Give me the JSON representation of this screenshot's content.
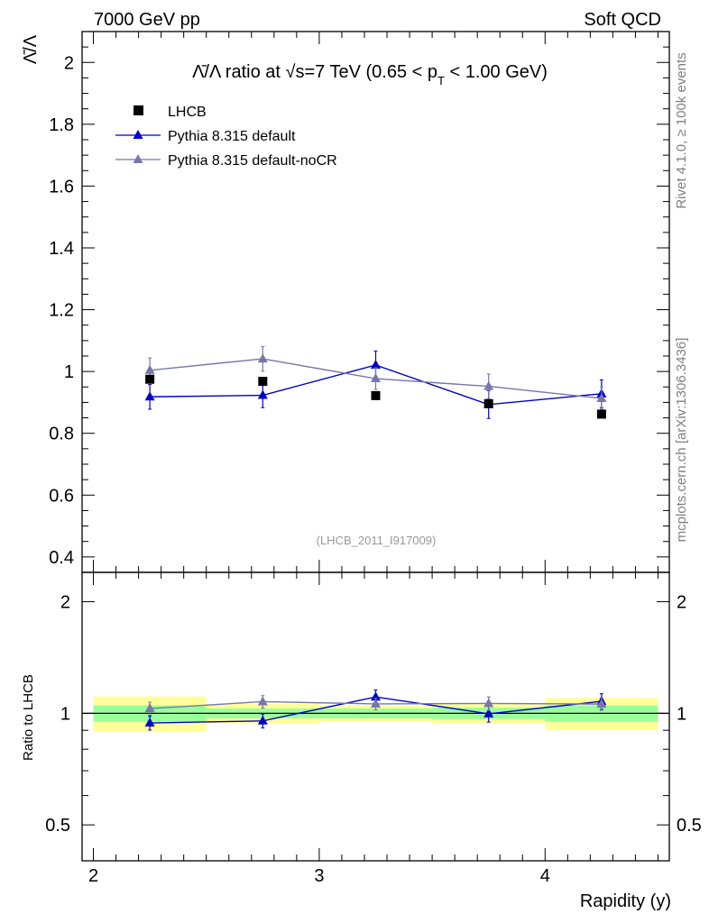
{
  "header": {
    "left": "7000 GeV pp",
    "right": "Soft QCD",
    "side_label_top": "Rivet 4.1.0, ≥ 100k events",
    "side_label_bottom": "mcplots.cern.ch [arXiv:1306.3436]"
  },
  "chart_data": {
    "type": "scatter",
    "title_parts": {
      "prefix": "Λ̄/Λ ratio at √s=7 TeV (0.65 < p",
      "subscript": "T",
      "suffix": " < 1.00 GeV)"
    },
    "analysis_id": "(LHCB_2011_I917009)",
    "xlabel": "Rapidity (y)",
    "ylabel": "Λ̄/Λ",
    "ratio_ylabel": "Ratio to LHCB",
    "xlim": [
      1.95,
      4.55
    ],
    "ylim": [
      0.35,
      2.1
    ],
    "ratio_ylim": [
      0.4,
      2.4
    ],
    "x_ticks": [
      "2",
      "3",
      "4"
    ],
    "x_tick_values": [
      2,
      3,
      4
    ],
    "y_ticks": [
      "0.4",
      "0.6",
      "0.8",
      "1",
      "1.2",
      "1.4",
      "1.6",
      "1.8",
      "2"
    ],
    "y_tick_values": [
      0.4,
      0.6,
      0.8,
      1.0,
      1.2,
      1.4,
      1.6,
      1.8,
      2.0
    ],
    "ratio_ticks": [
      "0.5",
      "1",
      "2"
    ],
    "ratio_tick_values": [
      0.5,
      1,
      2
    ],
    "x_bins": [
      [
        2.0,
        2.5
      ],
      [
        2.5,
        3.0
      ],
      [
        3.0,
        3.5
      ],
      [
        3.5,
        4.0
      ],
      [
        4.0,
        4.5
      ]
    ],
    "x": [
      2.25,
      2.75,
      3.25,
      3.75,
      4.25
    ],
    "data": {
      "name": "LHCB",
      "values": [
        0.975,
        0.968,
        0.922,
        0.896,
        0.862
      ],
      "stat_frac": [
        0.05,
        0.03,
        0.03,
        0.035,
        0.05
      ],
      "total_frac": [
        0.11,
        0.06,
        0.05,
        0.06,
        0.1
      ]
    },
    "series": [
      {
        "name": "Pythia 8.315 default",
        "color": "#0000cc",
        "values": [
          0.918,
          0.923,
          1.021,
          0.893,
          0.928
        ],
        "errors": [
          0.04,
          0.04,
          0.045,
          0.045,
          0.045
        ],
        "ratio": [
          0.942,
          0.954,
          1.107,
          0.997,
          1.077
        ]
      },
      {
        "name": "Pythia 8.315 default-noCR",
        "color": "#7777aa",
        "values": [
          1.004,
          1.041,
          0.977,
          0.952,
          0.913
        ],
        "errors": [
          0.04,
          0.04,
          0.035,
          0.04,
          0.035
        ],
        "ratio": [
          1.03,
          1.075,
          1.06,
          1.063,
          1.059
        ]
      }
    ],
    "colors": {
      "band_stat": "#99ff99",
      "band_total": "#ffff99",
      "data": "#000000"
    }
  }
}
